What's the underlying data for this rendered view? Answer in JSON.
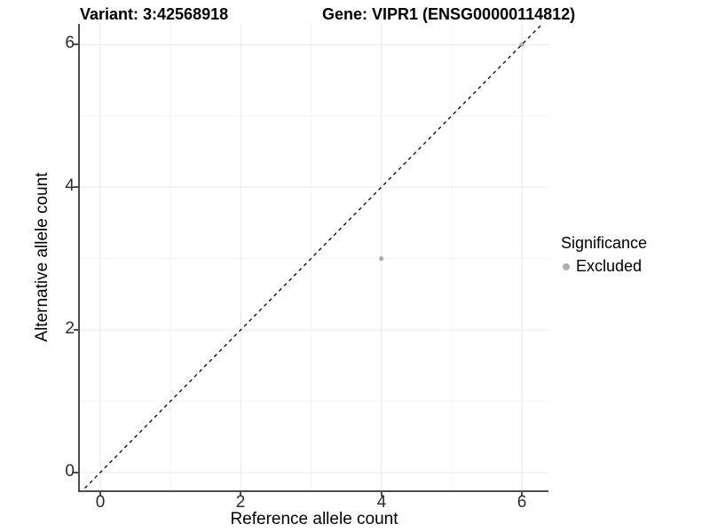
{
  "chart_data": {
    "type": "scatter",
    "titles": {
      "left": "Variant: 3:42568918",
      "right": "Gene: VIPR1 (ENSG00000114812)"
    },
    "xlabel": "Reference allele count",
    "ylabel": "Alternative allele count",
    "x_ticks": [
      0,
      2,
      4,
      6
    ],
    "y_ticks": [
      0,
      2,
      4,
      6
    ],
    "xlim": [
      -0.29,
      6.38
    ],
    "ylim": [
      -0.25,
      6.29
    ],
    "grid": {
      "major": true,
      "minor": true
    },
    "points": [
      {
        "x": 4,
        "y": 3,
        "significance": "Excluded"
      },
      {
        "x": 6,
        "y": 6,
        "significance": "Excluded"
      }
    ],
    "identity_line": {
      "slope": 1,
      "intercept": 0,
      "style": "dashed",
      "color": "#000000"
    },
    "legend": {
      "title": "Significance",
      "position": "right",
      "items": [
        {
          "label": "Excluded",
          "color": "#b0b0b0"
        }
      ]
    },
    "colors": {
      "point": "#b0b0b0",
      "grid_major": "#e9e9e9",
      "grid_minor": "#f4f4f4",
      "axis": "#4d4d4d",
      "background": "#ffffff"
    }
  }
}
